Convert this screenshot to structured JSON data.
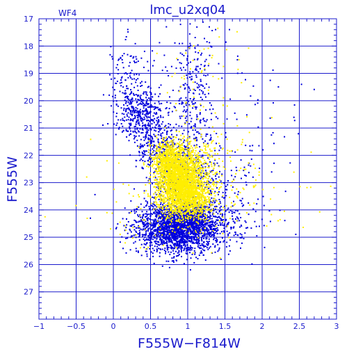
{
  "chart_data": {
    "type": "scatter",
    "title": "lmc_u2xq04",
    "tag": "WF4",
    "xlabel": "F555W−F814W",
    "ylabel": "F555W",
    "xlim": [
      -1,
      3
    ],
    "ylim": [
      28,
      17
    ],
    "y_inverted": true,
    "grid": true,
    "xticks": [
      -1,
      -0.5,
      0,
      0.5,
      1,
      1.5,
      2,
      2.5,
      3
    ],
    "xtick_labels": [
      "−1",
      "−0.5",
      "0",
      "0.5",
      "1",
      "1.5",
      "2",
      "2.5",
      "3"
    ],
    "yticks": [
      17,
      18,
      19,
      20,
      21,
      22,
      23,
      24,
      25,
      26,
      27
    ],
    "ytick_labels": [
      "17",
      "18",
      "19",
      "20",
      "21",
      "22",
      "23",
      "24",
      "25",
      "26",
      "27"
    ],
    "colors": {
      "frame": "#1a1acc",
      "blue_points": "#0000dd",
      "yellow_points": "#ffee00"
    },
    "series": [
      {
        "color": "blue",
        "clusters": [
          {
            "x": 0.85,
            "y": 24.7,
            "sx": 0.28,
            "sy": 0.45,
            "n": 1600
          },
          {
            "x": 0.95,
            "y": 24.4,
            "sx": 0.22,
            "sy": 0.35,
            "n": 600
          },
          {
            "x": 1.2,
            "y": 24.6,
            "sx": 0.35,
            "sy": 0.5,
            "n": 350
          },
          {
            "x": 0.4,
            "y": 20.6,
            "sx": 0.17,
            "sy": 0.5,
            "n": 380
          },
          {
            "x": 0.2,
            "y": 19.5,
            "sx": 0.12,
            "sy": 0.8,
            "n": 140
          },
          {
            "x": 0.6,
            "y": 21.7,
            "sx": 0.15,
            "sy": 0.35,
            "n": 180
          },
          {
            "x": 1.1,
            "y": 20.2,
            "sx": 0.15,
            "sy": 1.4,
            "n": 260
          },
          {
            "x": 0.85,
            "y": 22.8,
            "sx": 0.2,
            "sy": 0.5,
            "n": 300
          },
          {
            "x": 1.4,
            "y": 23.4,
            "sx": 0.3,
            "sy": 0.6,
            "n": 140
          },
          {
            "x": 0.7,
            "y": 18.5,
            "sx": 0.5,
            "sy": 0.8,
            "n": 60
          },
          {
            "x": 1.7,
            "y": 21.5,
            "sx": 0.6,
            "sy": 1.6,
            "n": 90
          }
        ]
      },
      {
        "color": "yellow",
        "clusters": [
          {
            "x": 0.9,
            "y": 22.9,
            "sx": 0.16,
            "sy": 0.6,
            "n": 2200
          },
          {
            "x": 0.72,
            "y": 22.1,
            "sx": 0.1,
            "sy": 0.3,
            "n": 400
          },
          {
            "x": 1.05,
            "y": 23.6,
            "sx": 0.15,
            "sy": 0.35,
            "n": 500
          },
          {
            "x": 1.2,
            "y": 22.2,
            "sx": 0.28,
            "sy": 0.9,
            "n": 160
          },
          {
            "x": 1.2,
            "y": 18.9,
            "sx": 0.25,
            "sy": 0.9,
            "n": 45
          },
          {
            "x": 1.3,
            "y": 23.5,
            "sx": 0.6,
            "sy": 0.9,
            "n": 130
          },
          {
            "x": 0.6,
            "y": 24.0,
            "sx": 0.5,
            "sy": 0.8,
            "n": 90
          }
        ]
      }
    ]
  }
}
